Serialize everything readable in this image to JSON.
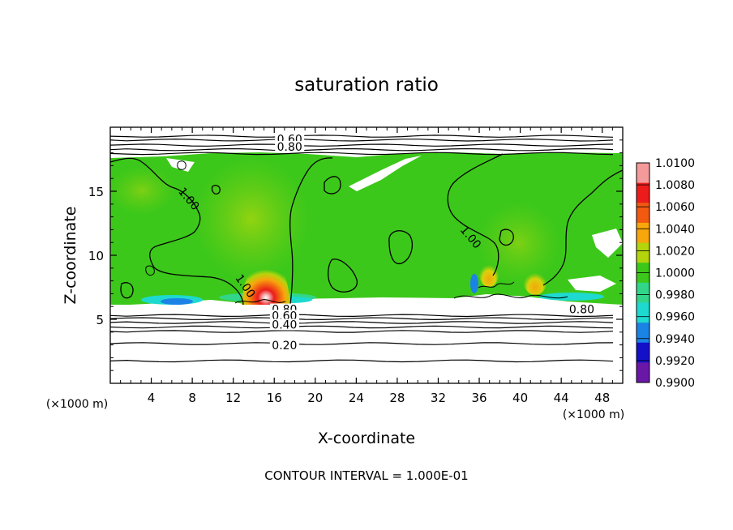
{
  "chart_data": {
    "type": "heatmap",
    "title": "saturation ratio",
    "xlabel": "X-coordinate",
    "ylabel": "Z-coordinate",
    "x_unit": "(×1000 m)",
    "z_unit": "(×1000 m)",
    "xlim": [
      0,
      50
    ],
    "ylim": [
      0,
      20
    ],
    "x_ticks": [
      4,
      8,
      12,
      16,
      20,
      24,
      28,
      32,
      36,
      40,
      44,
      48
    ],
    "y_ticks": [
      5,
      10,
      15
    ],
    "footer": "CONTOUR INTERVAL = 1.000E-01",
    "colorbar": {
      "labels": [
        "1.0100",
        "1.0080",
        "1.0060",
        "1.0040",
        "1.0020",
        "1.0000",
        "0.9980",
        "0.9960",
        "0.9940",
        "0.9920",
        "0.9900"
      ],
      "colors": [
        "#f49a9a",
        "#ec1c1c",
        "#f25a12",
        "#f7a60c",
        "#b4d40c",
        "#3cc81a",
        "#31d689",
        "#1ed9cf",
        "#1b83e6",
        "#1410c9",
        "#6a17a8"
      ]
    },
    "contour_labels": [
      {
        "text": "0.60",
        "x": 17.5,
        "z": 18.9
      },
      {
        "text": "0.80",
        "x": 17.5,
        "z": 18.3
      },
      {
        "text": "1.00",
        "x": 7.5,
        "z": 14.3
      },
      {
        "text": "1.00",
        "x": 13,
        "z": 7.5
      },
      {
        "text": "1.00",
        "x": 35,
        "z": 11.3
      },
      {
        "text": "0.80",
        "x": 46,
        "z": 5.6
      },
      {
        "text": "0.80",
        "x": 17,
        "z": 5.6
      },
      {
        "text": "0.60",
        "x": 17,
        "z": 5.1
      },
      {
        "text": "0.40",
        "x": 17,
        "z": 4.4
      },
      {
        "text": "0.20",
        "x": 17,
        "z": 2.8
      }
    ],
    "stable_contours_z": [
      19.3,
      19.0,
      18.6,
      18.25,
      17.95,
      5.3,
      5.05,
      4.75,
      4.4,
      4.05,
      3.1,
      1.75
    ]
  }
}
